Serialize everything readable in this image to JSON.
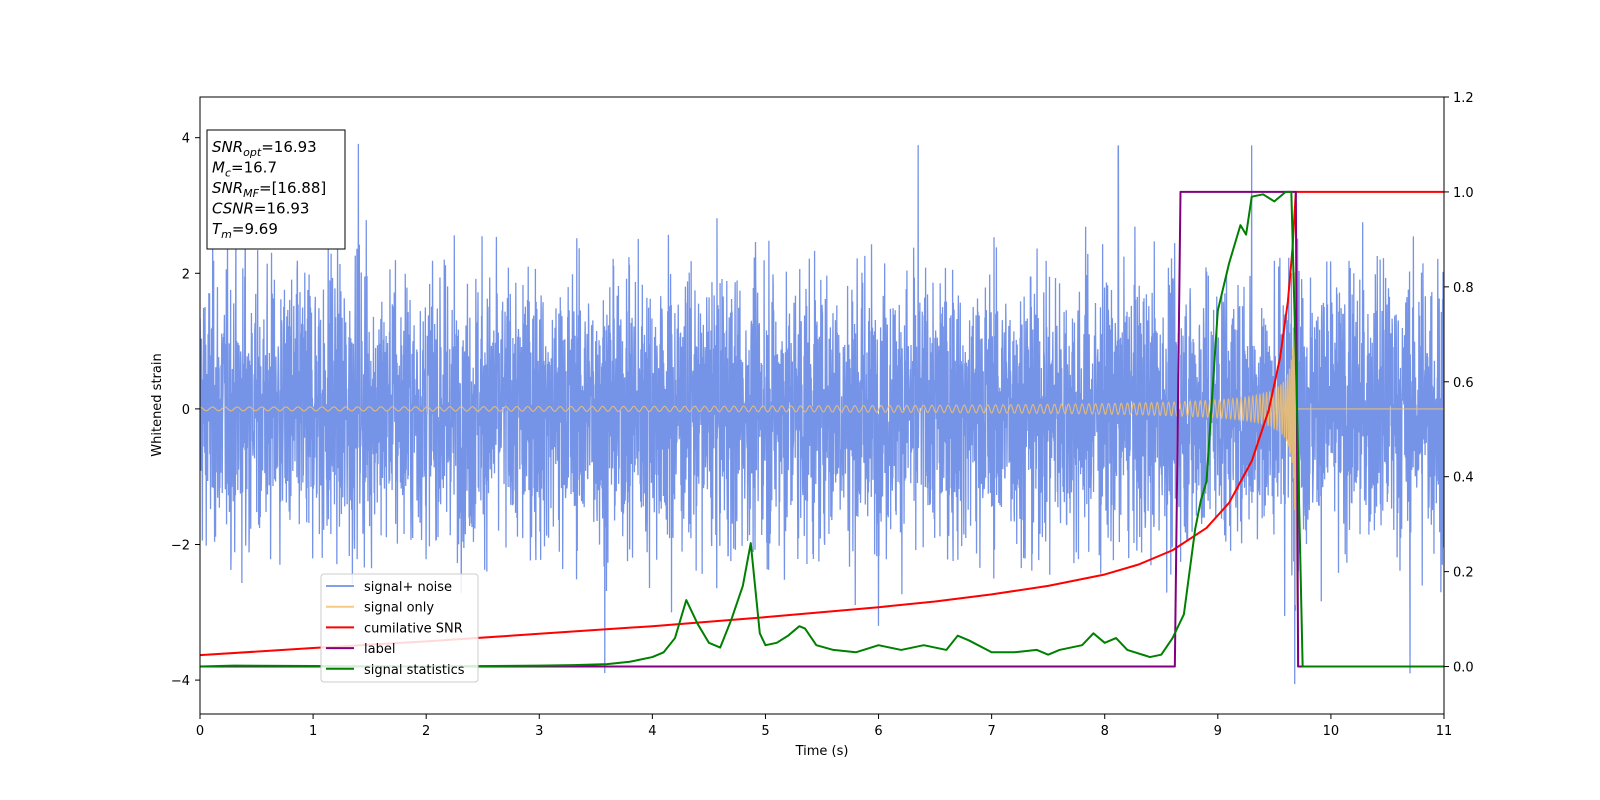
{
  "chart_data": {
    "type": "line",
    "xlabel": "Time (s)",
    "ylabel_left": "Whitened strain",
    "ylabel_right": "",
    "xlim": [
      0,
      11
    ],
    "ylim_left": [
      -4.5,
      4.6
    ],
    "ylim_right": [
      -0.1,
      1.2
    ],
    "x_ticks": [
      0,
      1,
      2,
      3,
      4,
      5,
      6,
      7,
      8,
      9,
      10,
      11
    ],
    "y_ticks_left": [
      -4,
      -2,
      0,
      2,
      4
    ],
    "y_ticks_right": [
      0.0,
      0.2,
      0.4,
      0.6,
      0.8,
      1.0,
      1.2
    ],
    "y_tick_labels_left": [
      "−4",
      "−2",
      "0",
      "2",
      "4"
    ],
    "y_tick_labels_right": [
      "0.0",
      "0.2",
      "0.4",
      "0.6",
      "0.8",
      "1.0",
      "1.2"
    ],
    "grid": false,
    "legend_position": "lower-left",
    "annotation_box": {
      "position": "top-left",
      "lines": [
        {
          "name": "SNR",
          "sub": "opt",
          "value": "=16.93"
        },
        {
          "name": "M",
          "sub": "c",
          "value": "=16.7"
        },
        {
          "name": "SNR",
          "sub": "MF",
          "value": "=[16.88]"
        },
        {
          "name": "CSNR",
          "sub": "",
          "value": "=16.93"
        },
        {
          "name": "T",
          "sub": "m",
          "value": "=9.69"
        }
      ]
    },
    "series": [
      {
        "name": "signal+ noise",
        "axis": "left",
        "color": "#6f8ee6",
        "description_values": {
          "amplitude_range": [
            -4.1,
            4.2
          ],
          "spike_times": [
            0.4,
            1.4,
            3.58,
            6.35,
            8.12,
            9.3,
            9.68,
            10.7
          ]
        }
      },
      {
        "name": "signal only",
        "axis": "left",
        "color": "#f5c26b",
        "chirp": {
          "start_time": 0,
          "merger_time": 9.69,
          "initial_amplitude": 0.05,
          "peak_amplitude": 3.1
        }
      },
      {
        "name": "cumilative SNR",
        "axis": "right",
        "color": "#ff0000",
        "x": [
          0,
          1,
          2,
          3,
          4,
          5,
          6,
          6.5,
          7,
          7.5,
          8,
          8.3,
          8.6,
          8.9,
          9.1,
          9.3,
          9.45,
          9.55,
          9.62,
          9.66,
          9.69,
          11
        ],
        "y": [
          0.024,
          0.039,
          0.053,
          0.069,
          0.085,
          0.104,
          0.125,
          0.137,
          0.152,
          0.17,
          0.194,
          0.215,
          0.245,
          0.292,
          0.345,
          0.433,
          0.54,
          0.65,
          0.77,
          0.88,
          1.0,
          1.0
        ]
      },
      {
        "name": "label",
        "axis": "right",
        "color": "#800080",
        "x": [
          0,
          8.62,
          8.67,
          9.69,
          9.71,
          11
        ],
        "y": [
          0.0,
          0.0,
          1.0,
          1.0,
          0.0,
          0.0
        ]
      },
      {
        "name": "signal statistics",
        "axis": "right",
        "color": "#008000",
        "x": [
          0,
          0.3,
          1,
          2,
          3,
          3.3,
          3.6,
          3.8,
          4.0,
          4.1,
          4.2,
          4.3,
          4.4,
          4.5,
          4.6,
          4.7,
          4.8,
          4.87,
          4.95,
          5.0,
          5.1,
          5.2,
          5.3,
          5.35,
          5.45,
          5.6,
          5.8,
          6.0,
          6.2,
          6.4,
          6.6,
          6.7,
          6.8,
          7.0,
          7.2,
          7.4,
          7.5,
          7.6,
          7.8,
          7.9,
          8.0,
          8.1,
          8.2,
          8.4,
          8.5,
          8.6,
          8.7,
          8.8,
          8.85,
          8.9,
          9.0,
          9.1,
          9.2,
          9.25,
          9.3,
          9.4,
          9.5,
          9.6,
          9.65,
          9.7,
          9.75,
          11
        ],
        "y": [
          0.0,
          0.002,
          0.001,
          0.0,
          0.002,
          0.003,
          0.005,
          0.01,
          0.02,
          0.03,
          0.06,
          0.14,
          0.09,
          0.05,
          0.04,
          0.1,
          0.17,
          0.26,
          0.07,
          0.045,
          0.05,
          0.065,
          0.085,
          0.08,
          0.045,
          0.035,
          0.03,
          0.045,
          0.035,
          0.045,
          0.035,
          0.065,
          0.055,
          0.03,
          0.03,
          0.035,
          0.025,
          0.035,
          0.045,
          0.07,
          0.05,
          0.06,
          0.035,
          0.02,
          0.025,
          0.06,
          0.11,
          0.29,
          0.35,
          0.39,
          0.75,
          0.85,
          0.93,
          0.91,
          0.99,
          0.995,
          0.98,
          1.0,
          1.0,
          0.55,
          0.0,
          0.0
        ]
      }
    ]
  }
}
